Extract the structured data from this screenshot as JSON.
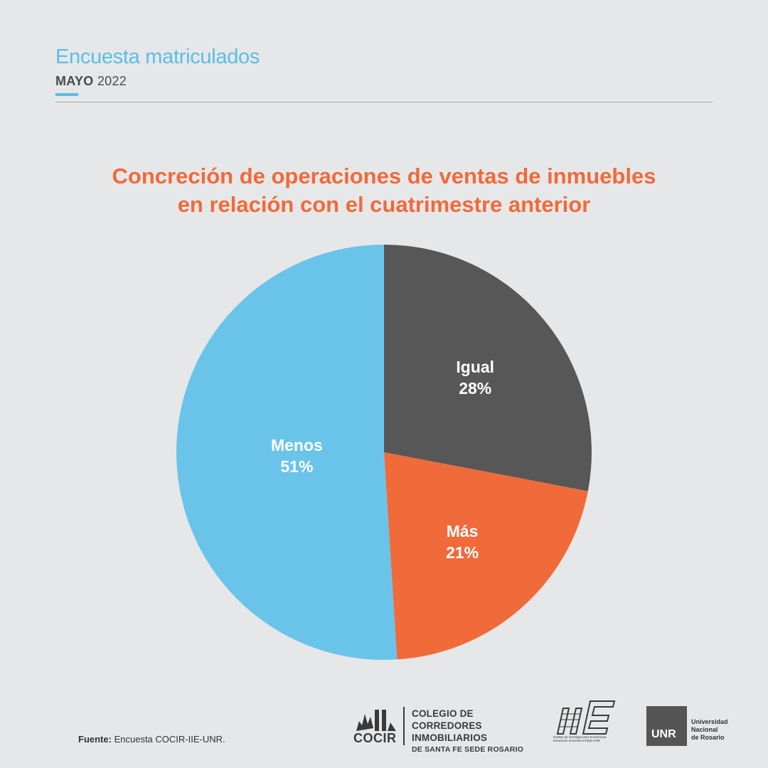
{
  "header": {
    "title": "Encuesta matriculados",
    "month": "MAYO",
    "year": "2022"
  },
  "chart_data": {
    "type": "pie",
    "title_line1": "Concreción de operaciones de ventas de inmuebles",
    "title_line2": "en relación con el cuatrimestre anterior",
    "slices": [
      {
        "label": "Igual",
        "value": 28,
        "display": "28%",
        "color": "#575757"
      },
      {
        "label": "Más",
        "value": 21,
        "display": "21%",
        "color": "#f06a3a"
      },
      {
        "label": "Menos",
        "value": 51,
        "display": "51%",
        "color": "#6ac4ea"
      }
    ],
    "start_angle_deg": 0,
    "direction": "clockwise",
    "label_color": "#ffffff"
  },
  "footer": {
    "source_label": "Fuente:",
    "source_text": "Encuesta COCIR-IIE-UNR.",
    "cocir": {
      "mark": "COCIR",
      "line1": "COLEGIO DE CORREDORES",
      "line2": "INMOBILIARIOS",
      "line3": "DE SANTA FE SEDE ROSARIO"
    },
    "iie": {
      "mark": "IIE",
      "line1": "Instituto de Investigaciones Económicas",
      "line2": "Escuela de Economía FCEyE-UNR"
    },
    "unr": {
      "mark": "UNR",
      "line1": "Universidad",
      "line2": "Nacional",
      "line3": "de Rosario"
    }
  }
}
